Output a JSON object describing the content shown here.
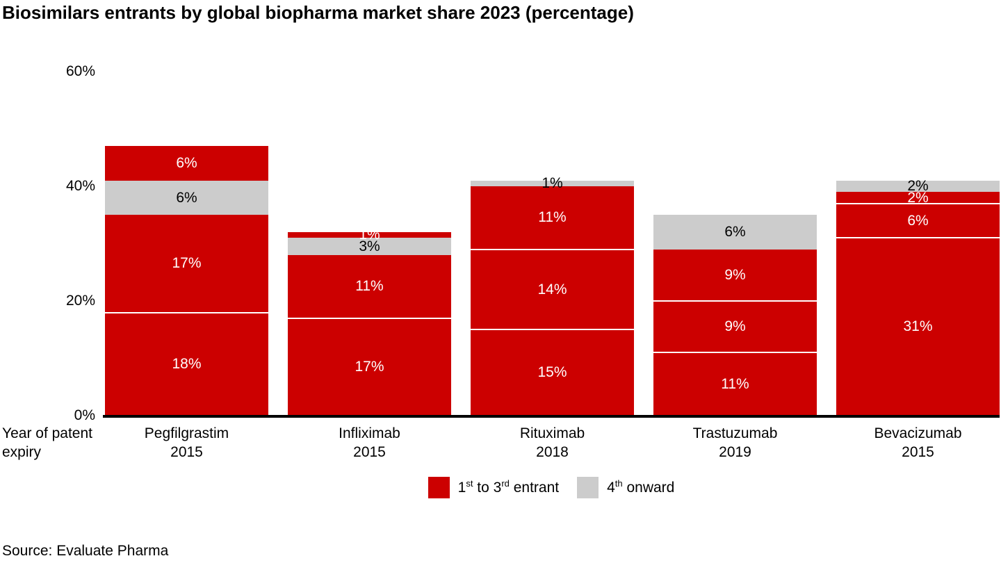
{
  "title": "Biosimilars entrants by global biopharma market share 2023 (percentage)",
  "source": "Source: Evaluate Pharma",
  "x_axis_caption": "Year of patent\nexpiry",
  "chart_data": {
    "type": "bar",
    "stacked": true,
    "title": "Biosimilars entrants by global biopharma market share 2023 (percentage)",
    "ylim": [
      0,
      60
    ],
    "grid": false,
    "legend_position": "bottom-center",
    "y_axis": {
      "ticks": [
        {
          "value": 0,
          "label": "0%"
        },
        {
          "value": 20,
          "label": "20%"
        },
        {
          "value": 40,
          "label": "40%"
        },
        {
          "value": 60,
          "label": "60%"
        }
      ]
    },
    "series": [
      {
        "name": "1st to 3rd entrant",
        "color": "#cc0000",
        "label_color": "#ffffff"
      },
      {
        "name": "4th onward",
        "color": "#cccccc",
        "label_color": "#000000"
      }
    ],
    "legend": [
      {
        "series": 0,
        "color": "#cc0000",
        "parts": [
          {
            "text": "1"
          },
          {
            "text": "st",
            "sup": true
          },
          {
            "text": " to 3"
          },
          {
            "text": "rd",
            "sup": true
          },
          {
            "text": " entrant"
          }
        ]
      },
      {
        "series": 1,
        "color": "#cccccc",
        "parts": [
          {
            "text": "4"
          },
          {
            "text": "th",
            "sup": true
          },
          {
            "text": " onward"
          }
        ]
      }
    ],
    "bars": [
      {
        "category": "Pegfilgrastim",
        "year": "2015",
        "total": 47,
        "segments": [
          {
            "value": 18,
            "series": 0
          },
          {
            "value": 17,
            "series": 0
          },
          {
            "value": 6,
            "series": 1
          },
          {
            "value": 6,
            "series": 0
          }
        ]
      },
      {
        "category": "Infliximab",
        "year": "2015",
        "total": 32,
        "segments": [
          {
            "value": 17,
            "series": 0
          },
          {
            "value": 11,
            "series": 0
          },
          {
            "value": 3,
            "series": 1
          },
          {
            "value": 1,
            "series": 0
          }
        ]
      },
      {
        "category": "Rituximab",
        "year": "2018",
        "total": 41,
        "segments": [
          {
            "value": 15,
            "series": 0
          },
          {
            "value": 14,
            "series": 0
          },
          {
            "value": 11,
            "series": 0
          },
          {
            "value": 1,
            "series": 1
          }
        ]
      },
      {
        "category": "Trastuzumab",
        "year": "2019",
        "total": 35,
        "segments": [
          {
            "value": 11,
            "series": 0
          },
          {
            "value": 9,
            "series": 0
          },
          {
            "value": 9,
            "series": 0
          },
          {
            "value": 6,
            "series": 1
          }
        ]
      },
      {
        "category": "Bevacizumab",
        "year": "2015",
        "total": 41,
        "segments": [
          {
            "value": 31,
            "series": 0
          },
          {
            "value": 6,
            "series": 0
          },
          {
            "value": 2,
            "series": 0
          },
          {
            "value": 2,
            "series": 1
          }
        ]
      }
    ]
  }
}
